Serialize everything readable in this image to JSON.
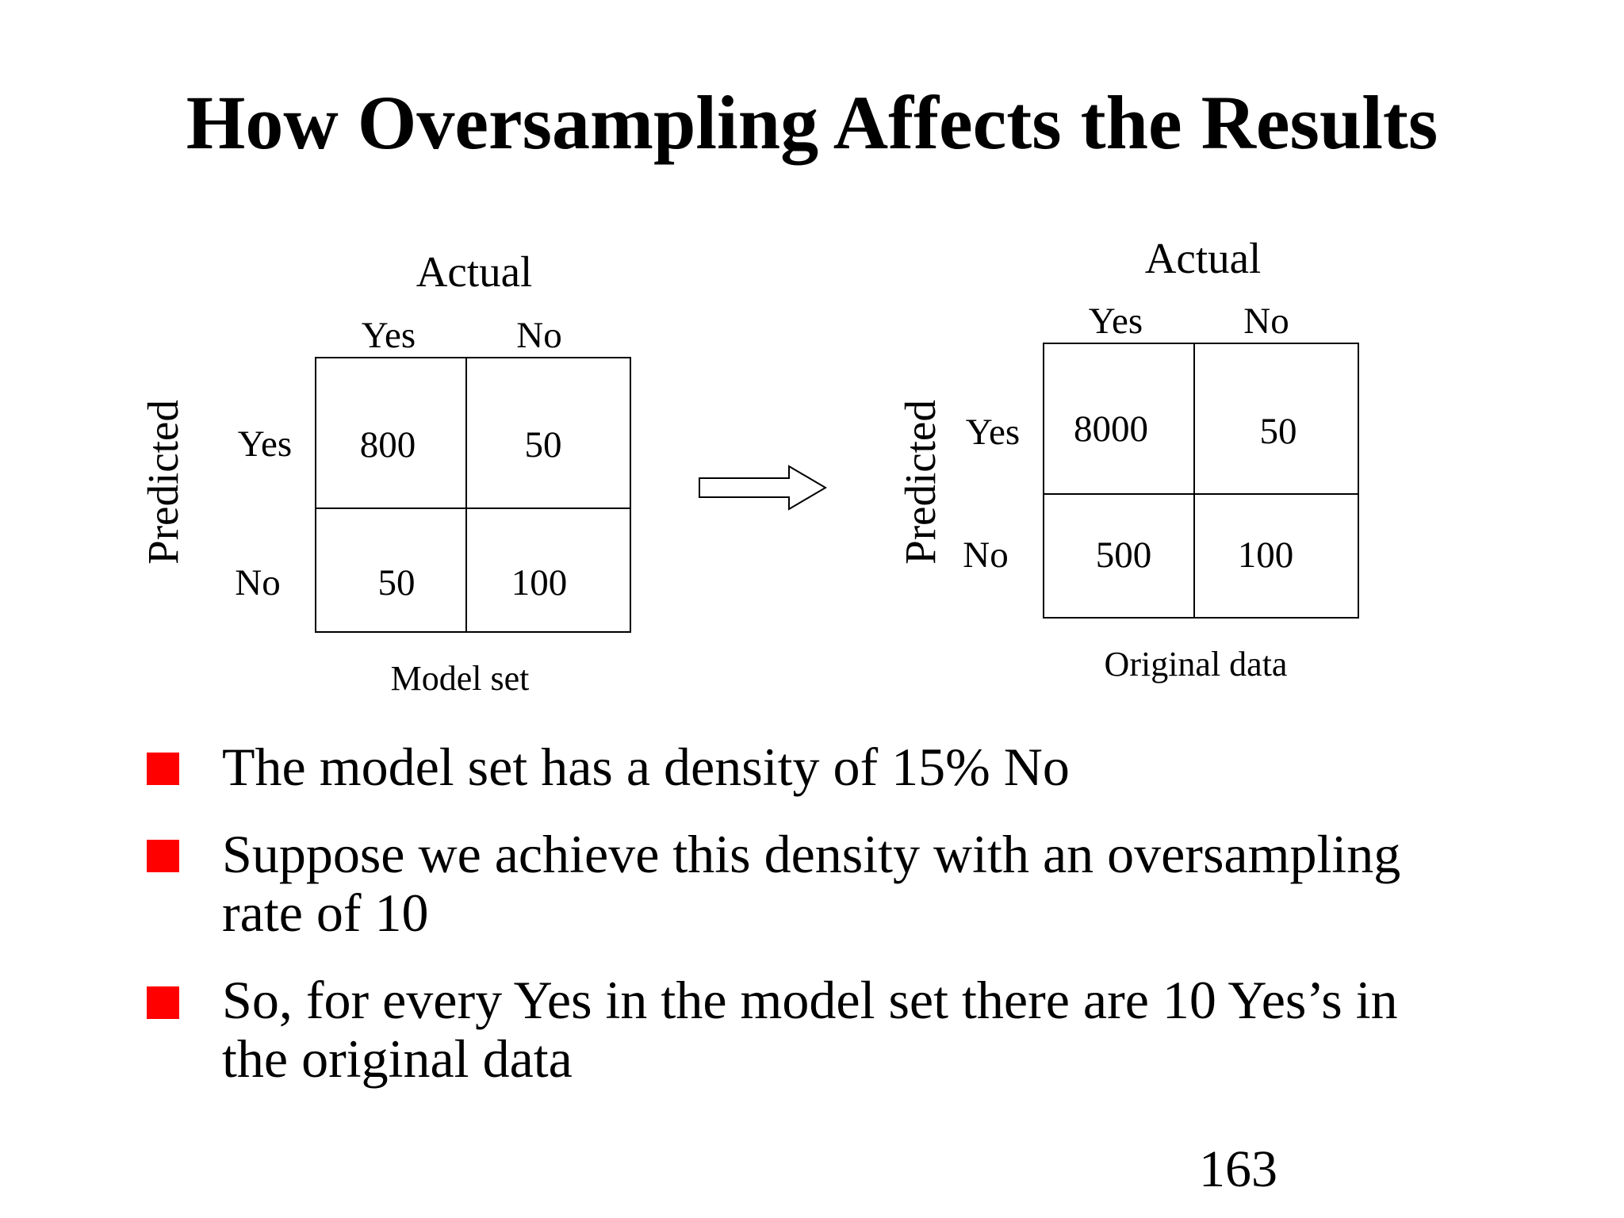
{
  "slide": {
    "title": "How Oversampling Affects the Results",
    "page_number": "163"
  },
  "left_matrix": {
    "actual_label": "Actual",
    "predicted_label": "Predicted",
    "col_headers": [
      "Yes",
      "No"
    ],
    "row_headers": [
      "Yes",
      "No"
    ],
    "cells": [
      [
        "800",
        "50"
      ],
      [
        "50",
        "100"
      ]
    ],
    "caption": "Model set"
  },
  "right_matrix": {
    "actual_label": "Actual",
    "predicted_label": "Predicted",
    "col_headers": [
      "Yes",
      "No"
    ],
    "row_headers": [
      "Yes",
      "No"
    ],
    "cells": [
      [
        "8000",
        "50"
      ],
      [
        "500",
        "100"
      ]
    ],
    "caption": "Original data"
  },
  "arrow_icon": "right-hollow-arrow",
  "bullets": [
    {
      "lines": [
        "The model set has a density of 15% No"
      ]
    },
    {
      "lines": [
        "Suppose we achieve this density with an oversampling",
        "rate of 10"
      ]
    },
    {
      "lines": [
        "So, for every Yes in the model set there are 10 Yes’s in",
        "the original data"
      ]
    }
  ],
  "colors": {
    "bullet": "#ff0000",
    "text": "#000000",
    "background": "#ffffff"
  }
}
